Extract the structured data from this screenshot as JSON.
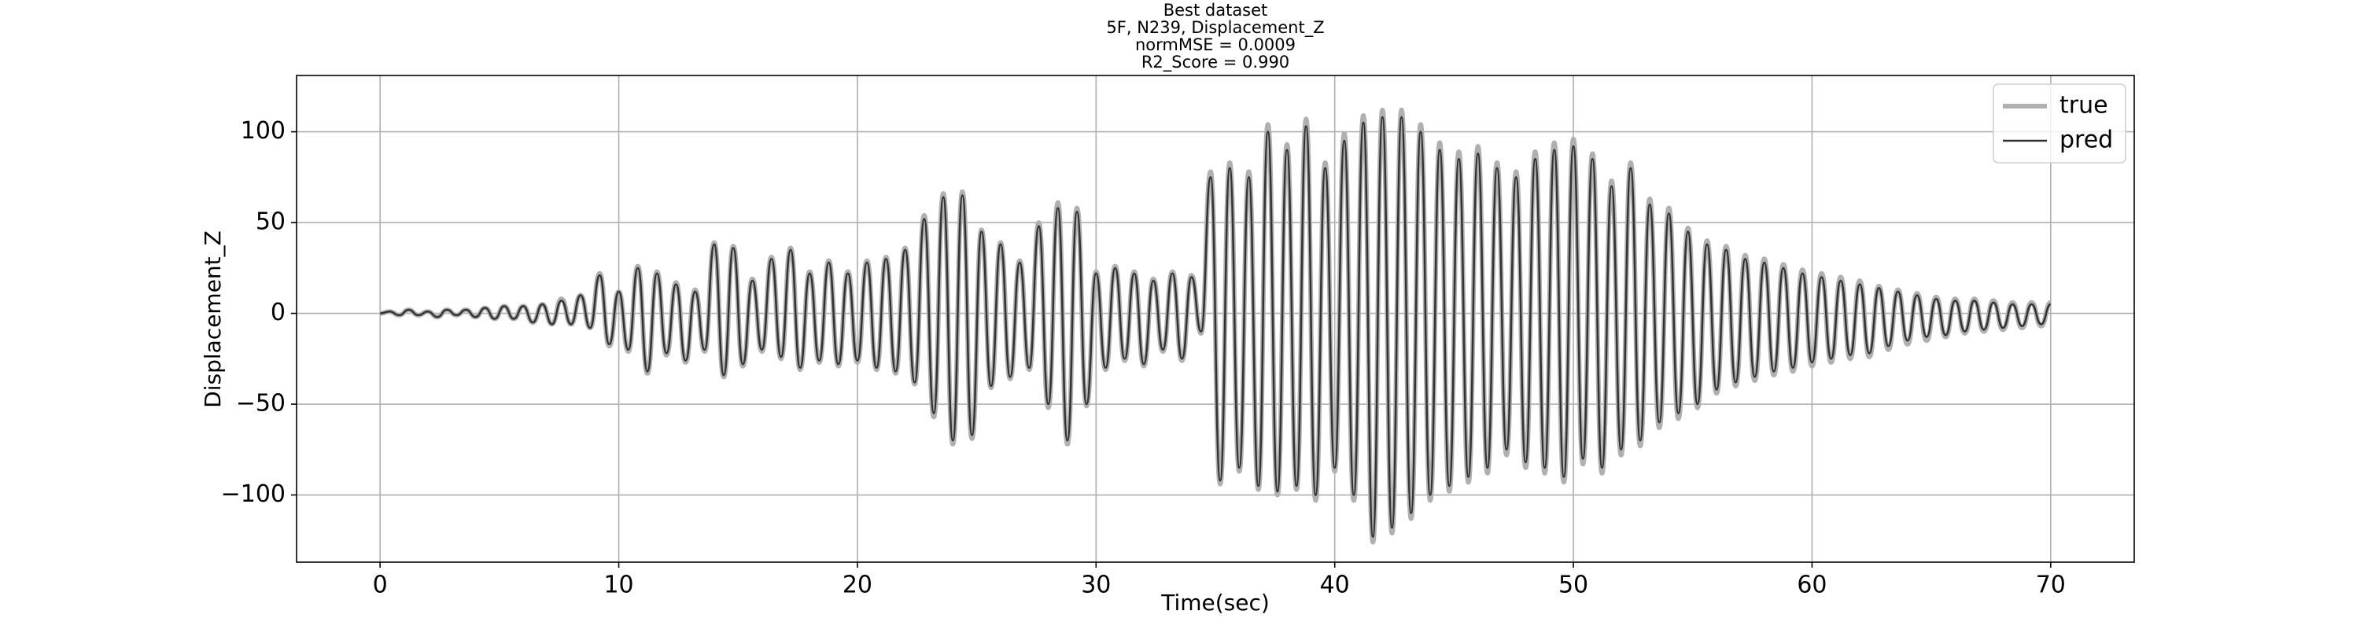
{
  "chart_data": {
    "type": "line",
    "title_lines": [
      "Best dataset",
      "5F, N239, Displacement_Z",
      "normMSE = 0.0009",
      "R2_Score = 0.990"
    ],
    "xlabel": "Time(sec)",
    "ylabel": "Displacement_Z",
    "xlim": [
      -3.5,
      73.5
    ],
    "ylim": [
      -137,
      131
    ],
    "xticks": [
      0,
      10,
      20,
      30,
      40,
      50,
      60,
      70
    ],
    "yticks": [
      {
        "value": -100,
        "label": "−100"
      },
      {
        "value": -50,
        "label": "−50"
      },
      0,
      50,
      100
    ],
    "grid": true,
    "legend": "upper right",
    "x": [
      0,
      0.4,
      0.8,
      1.2,
      1.6,
      2,
      2.4,
      2.8,
      3.2,
      3.6,
      4,
      4.4,
      4.8,
      5.2,
      5.6,
      6,
      6.4,
      6.8,
      7.2,
      7.6,
      8,
      8.4,
      8.8,
      9.2,
      9.6,
      10,
      10.4,
      10.8,
      11.2,
      11.6,
      12,
      12.4,
      12.8,
      13.2,
      13.6,
      14,
      14.4,
      14.8,
      15.2,
      15.6,
      16,
      16.4,
      16.8,
      17.2,
      17.6,
      18,
      18.4,
      18.8,
      19.2,
      19.6,
      20,
      20.4,
      20.8,
      21.2,
      21.6,
      22,
      22.4,
      22.8,
      23.2,
      23.6,
      24,
      24.4,
      24.8,
      25.2,
      25.6,
      26,
      26.4,
      26.8,
      27.2,
      27.6,
      28,
      28.4,
      28.8,
      29.2,
      29.6,
      30,
      30.4,
      30.8,
      31.2,
      31.6,
      32,
      32.4,
      32.8,
      33.2,
      33.6,
      34,
      34.4,
      34.8,
      35.2,
      35.6,
      36,
      36.4,
      36.8,
      37.2,
      37.6,
      38,
      38.4,
      38.8,
      39.2,
      39.6,
      40,
      40.4,
      40.8,
      41.2,
      41.6,
      42,
      42.4,
      42.8,
      43.2,
      43.6,
      44,
      44.4,
      44.8,
      45.2,
      45.6,
      46,
      46.4,
      46.8,
      47.2,
      47.6,
      48,
      48.4,
      48.8,
      49.2,
      49.6,
      50,
      50.4,
      50.8,
      51.2,
      51.6,
      52,
      52.4,
      52.8,
      53.2,
      53.6,
      54,
      54.4,
      54.8,
      55.2,
      55.6,
      56,
      56.4,
      56.8,
      57.2,
      57.6,
      58,
      58.4,
      58.8,
      59.2,
      59.6,
      60,
      60.4,
      60.8,
      61.2,
      61.6,
      62,
      62.4,
      62.8,
      63.2,
      63.6,
      64,
      64.4,
      64.8,
      65.2,
      65.6,
      66,
      66.4,
      66.8,
      67.2,
      67.6,
      68,
      68.4,
      68.8,
      69.2,
      69.6,
      70
    ],
    "series": [
      {
        "name": "true",
        "color": "#b0b0b0",
        "width": 6,
        "values": [
          0,
          1,
          -1,
          2,
          -1,
          1,
          -2,
          2,
          -1,
          2,
          -2,
          3,
          -3,
          4,
          -3,
          4,
          -5,
          5,
          -6,
          8,
          -6,
          10,
          -8,
          22,
          -18,
          12,
          -21,
          26,
          -33,
          23,
          -23,
          17,
          -27,
          13,
          -21,
          39,
          -35,
          37,
          -29,
          19,
          -21,
          31,
          -25,
          36,
          -31,
          23,
          -27,
          29,
          -29,
          23,
          -27,
          29,
          -31,
          31,
          -33,
          36,
          -39,
          54,
          -57,
          66,
          -72,
          67,
          -69,
          46,
          -41,
          39,
          -36,
          29,
          -31,
          50,
          -52,
          61,
          -72,
          58,
          -51,
          23,
          -31,
          26,
          -26,
          23,
          -29,
          19,
          -21,
          23,
          -26,
          21,
          -11,
          78,
          -94,
          83,
          -87,
          78,
          -97,
          104,
          -100,
          93,
          -97,
          107,
          -103,
          83,
          -87,
          99,
          -103,
          109,
          -126,
          112,
          -121,
          112,
          -113,
          104,
          -103,
          94,
          -98,
          89,
          -93,
          92,
          -88,
          83,
          -78,
          78,
          -85,
          89,
          -88,
          94,
          -93,
          96,
          -83,
          88,
          -88,
          73,
          -78,
          83,
          -73,
          63,
          -63,
          58,
          -58,
          47,
          -52,
          40,
          -44,
          37,
          -40,
          32,
          -37,
          30,
          -34,
          27,
          -32,
          24,
          -29,
          22,
          -27,
          20,
          -25,
          18,
          -24,
          15,
          -20,
          13,
          -17,
          11,
          -15,
          9,
          -13,
          8,
          -11,
          8,
          -10,
          7,
          -9,
          6,
          -8,
          6,
          -7,
          6
        ]
      },
      {
        "name": "pred",
        "color": "#333333",
        "width": 2.5,
        "values": [
          0,
          1,
          -1,
          2,
          -1,
          1,
          -2,
          2,
          -1,
          2,
          -2,
          3,
          -3,
          4,
          -3,
          4,
          -5,
          5,
          -6,
          7,
          -6,
          10,
          -8,
          21,
          -17,
          12,
          -20,
          25,
          -32,
          22,
          -22,
          16,
          -26,
          12,
          -20,
          38,
          -34,
          36,
          -28,
          18,
          -20,
          30,
          -24,
          35,
          -30,
          22,
          -26,
          28,
          -28,
          22,
          -26,
          28,
          -30,
          30,
          -32,
          35,
          -38,
          52,
          -55,
          64,
          -70,
          65,
          -67,
          45,
          -40,
          38,
          -35,
          28,
          -30,
          48,
          -50,
          58,
          -70,
          56,
          -50,
          22,
          -30,
          25,
          -25,
          22,
          -28,
          18,
          -20,
          22,
          -25,
          20,
          -10,
          75,
          -92,
          80,
          -85,
          75,
          -95,
          100,
          -98,
          90,
          -95,
          103,
          -100,
          80,
          -85,
          95,
          -100,
          105,
          -123,
          108,
          -118,
          108,
          -110,
          100,
          -100,
          90,
          -95,
          85,
          -90,
          88,
          -85,
          80,
          -75,
          75,
          -82,
          85,
          -85,
          90,
          -90,
          92,
          -80,
          85,
          -85,
          70,
          -75,
          80,
          -70,
          60,
          -60,
          55,
          -55,
          45,
          -50,
          38,
          -42,
          35,
          -38,
          30,
          -35,
          28,
          -32,
          25,
          -30,
          22,
          -27,
          20,
          -25,
          18,
          -23,
          16,
          -22,
          14,
          -18,
          12,
          -15,
          10,
          -13,
          8,
          -12,
          7,
          -10,
          7,
          -9,
          6,
          -8,
          5,
          -7,
          5,
          -6,
          5
        ]
      }
    ]
  }
}
